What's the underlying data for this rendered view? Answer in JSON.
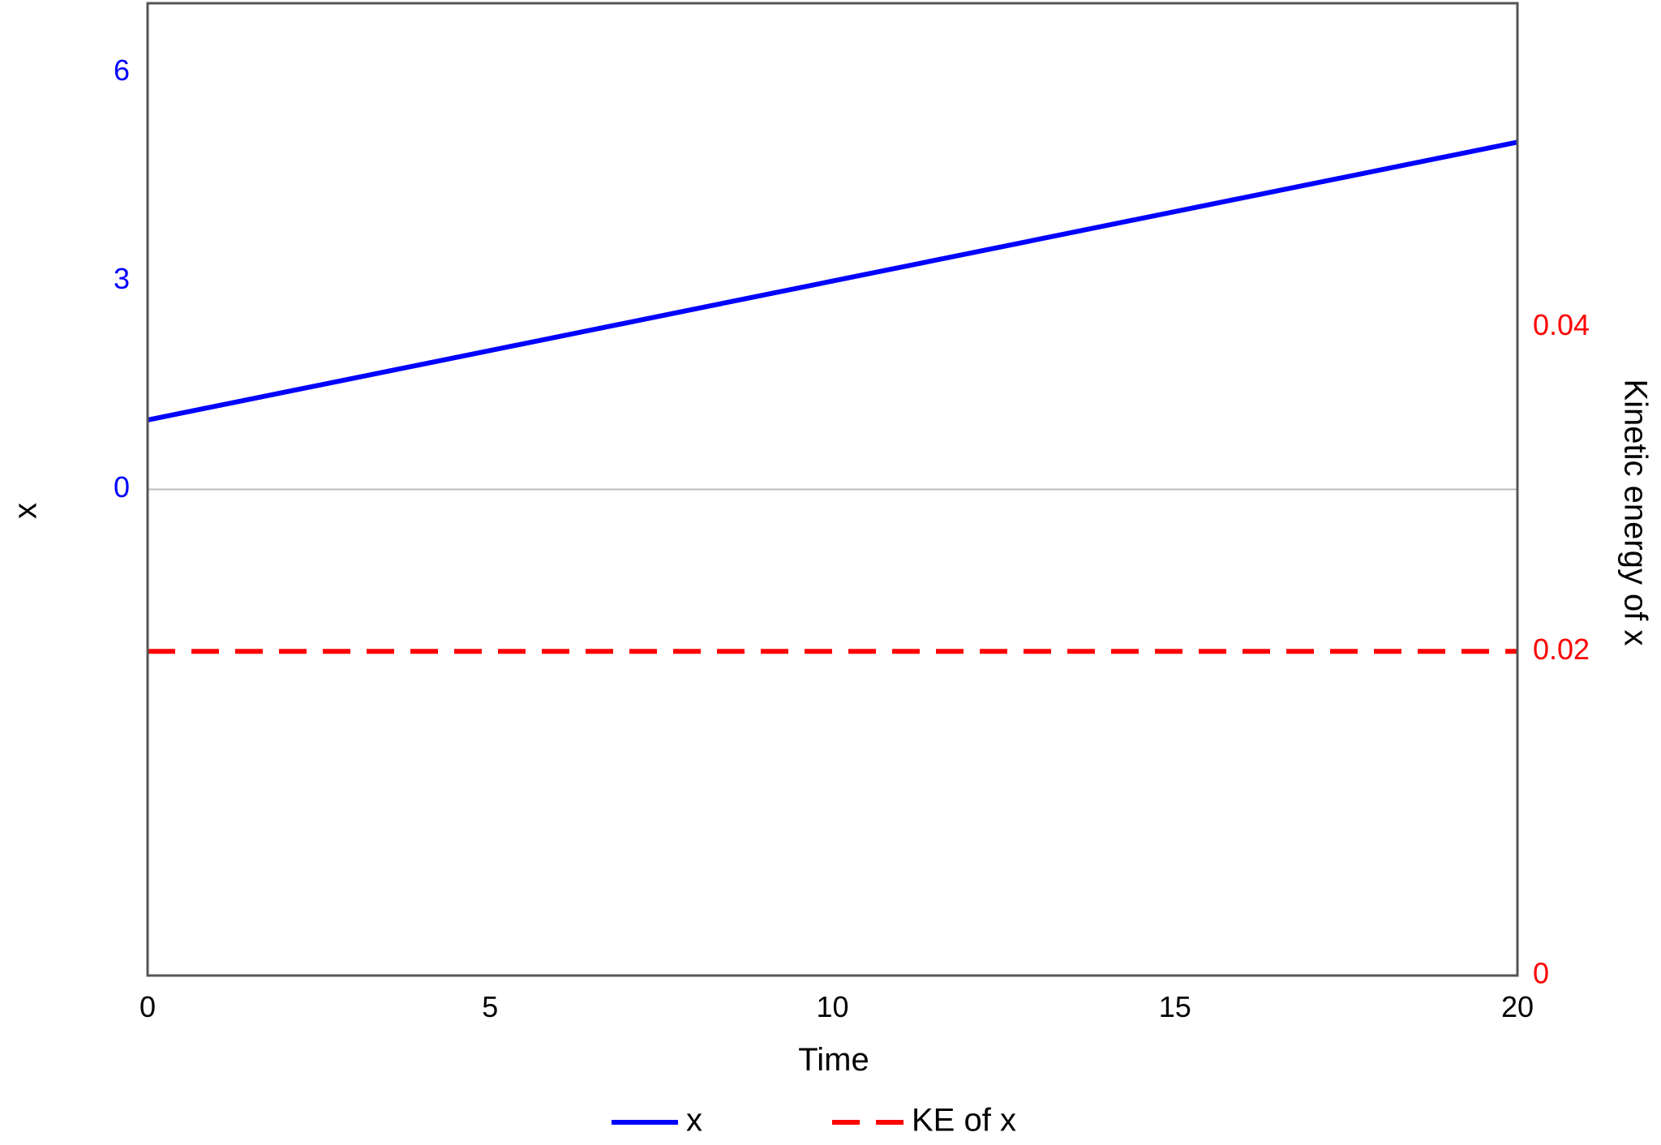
{
  "chart_data": {
    "type": "line",
    "xlabel": "Time",
    "ylabel_left": "x",
    "ylabel_right": "Kinetic energy of x",
    "xlim": [
      0,
      20
    ],
    "ylim_left": [
      -7,
      7
    ],
    "ylim_right": [
      0,
      0.06
    ],
    "x_ticks": [
      0,
      5,
      10,
      15,
      20
    ],
    "y_left_ticks": [
      0,
      3,
      6
    ],
    "y_right_ticks": [
      0,
      0.02,
      0.04
    ],
    "grid": false,
    "zero_line_left": true,
    "legend_position": "bottom",
    "series": [
      {
        "name": "x",
        "axis": "left",
        "style": "solid",
        "color": "#0000ff",
        "x": [
          0,
          20
        ],
        "y": [
          1.0,
          5.0
        ]
      },
      {
        "name": "KE of x",
        "axis": "right",
        "style": "dashed",
        "color": "#ff0000",
        "x": [
          0,
          20
        ],
        "y": [
          0.02,
          0.02
        ]
      }
    ]
  },
  "colors": {
    "left_axis": "#0000ff",
    "right_axis": "#ff0000",
    "frame": "#555555",
    "zero_line": "#bbbbbb"
  }
}
